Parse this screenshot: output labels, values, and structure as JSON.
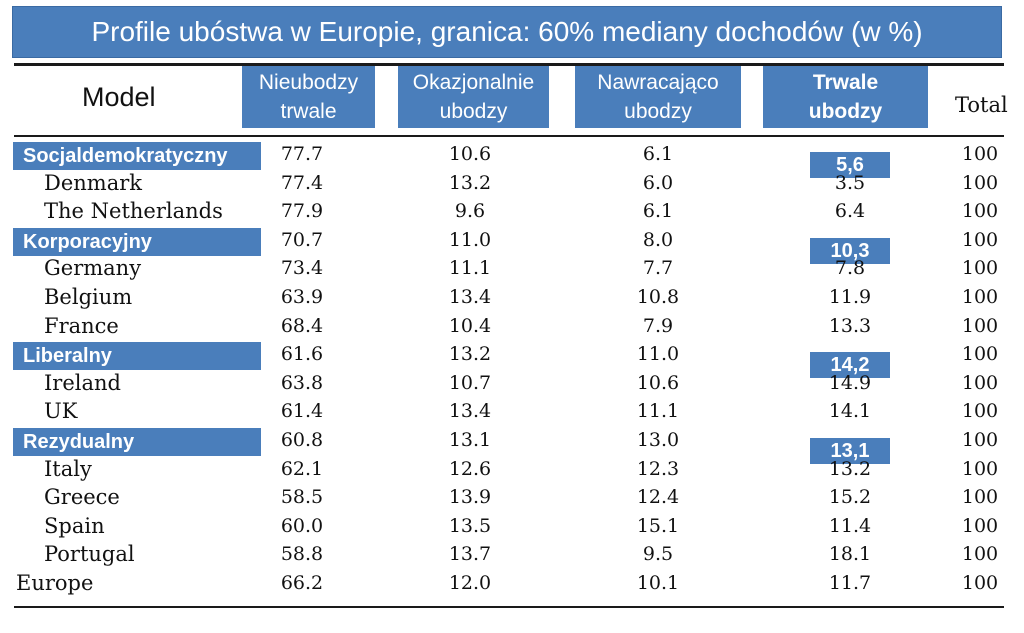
{
  "title": "Profile ubóstwa w Europie, granica: 60% mediany dochodów (w %)",
  "headers": {
    "model": "Model",
    "col1_line1": "Nieubodzy",
    "col1_line2": "trwale",
    "col2_line1": "Okazjonalnie",
    "col2_line2": "ubodzy",
    "col3_line1": "Nawracająco",
    "col3_line2": "ubodzy",
    "col4_line1": "Trwale",
    "col4_line2": "ubodzy",
    "total": "Total"
  },
  "rows": [
    {
      "group": "Socjaldemokratyczny",
      "v1": "77.7",
      "v2": "10.6",
      "v3": "6.1",
      "group_v4": "5,6",
      "total": "100"
    },
    {
      "name": "Denmark",
      "v1": "77.4",
      "v2": "13.2",
      "v3": "6.0",
      "v4": "3.5",
      "total": "100"
    },
    {
      "name": "The Netherlands",
      "v1": "77.9",
      "v2": "9.6",
      "v3": "6.1",
      "v4": "6.4",
      "total": "100"
    },
    {
      "group": "Korporacyjny",
      "v1": "70.7",
      "v2": "11.0",
      "v3": "8.0",
      "group_v4": "10,3",
      "total": "100"
    },
    {
      "name": "Germany",
      "v1": "73.4",
      "v2": "11.1",
      "v3": "7.7",
      "v4": "7.8",
      "total": "100"
    },
    {
      "name": "Belgium",
      "v1": "63.9",
      "v2": "13.4",
      "v3": "10.8",
      "v4": "11.9",
      "total": "100"
    },
    {
      "name": "France",
      "v1": "68.4",
      "v2": "10.4",
      "v3": "7.9",
      "v4": "13.3",
      "total": "100"
    },
    {
      "group": "Liberalny",
      "v1": "61.6",
      "v2": "13.2",
      "v3": "11.0",
      "group_v4": "14,2",
      "total": "100"
    },
    {
      "name": "Ireland",
      "v1": "63.8",
      "v2": "10.7",
      "v3": "10.6",
      "v4": "14.9",
      "total": "100"
    },
    {
      "name": "UK",
      "v1": "61.4",
      "v2": "13.4",
      "v3": "11.1",
      "v4": "14.1",
      "total": "100"
    },
    {
      "group": "Rezydualny",
      "v1": "60.8",
      "v2": "13.1",
      "v3": "13.0",
      "group_v4": "13,1",
      "total": "100"
    },
    {
      "name": "Italy",
      "v1": "62.1",
      "v2": "12.6",
      "v3": "12.3",
      "v4": "13.2",
      "total": "100"
    },
    {
      "name": "Greece",
      "v1": "58.5",
      "v2": "13.9",
      "v3": "12.4",
      "v4": "15.2",
      "total": "100"
    },
    {
      "name": "Spain",
      "v1": "60.0",
      "v2": "13.5",
      "v3": "15.1",
      "v4": "11.4",
      "total": "100"
    },
    {
      "name": "Portugal",
      "v1": "58.8",
      "v2": "13.7",
      "v3": "9.5",
      "v4": "18.1",
      "total": "100"
    },
    {
      "name": "Europe",
      "top": true,
      "v1": "66.2",
      "v2": "12.0",
      "v3": "10.1",
      "v4": "11.7",
      "total": "100"
    }
  ],
  "colors": {
    "accent": "#4a7ebb",
    "text": "#111111"
  }
}
